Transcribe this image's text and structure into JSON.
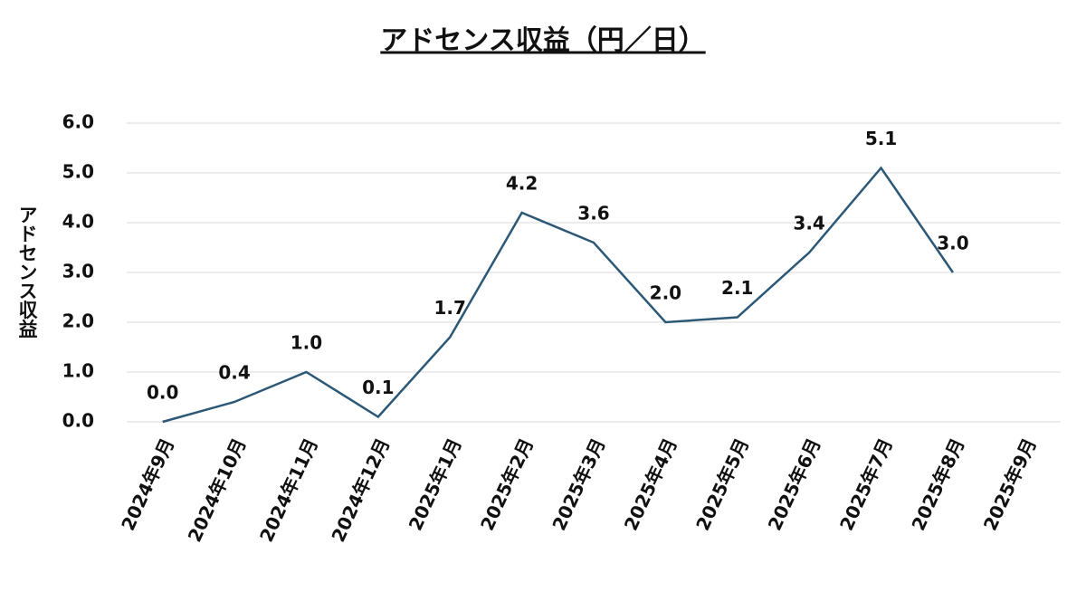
{
  "chart_data": {
    "type": "line",
    "title": "アドセンス収益（円／日）",
    "y_label": "アドセンス収益",
    "categories": [
      "2024年9月",
      "2024年10月",
      "2024年11月",
      "2024年12月",
      "2025年1月",
      "2025年2月",
      "2025年3月",
      "2025年4月",
      "2025年5月",
      "2025年6月",
      "2025年7月",
      "2025年8月",
      "2025年9月"
    ],
    "series": [
      {
        "name": "アドセンス収益",
        "color": "#2b5876",
        "values": [
          0.0,
          0.4,
          1.0,
          0.1,
          1.7,
          4.2,
          3.6,
          2.0,
          2.1,
          3.4,
          5.1,
          3.0,
          null
        ],
        "value_labels": [
          "0.0",
          "0.4",
          "1.0",
          "0.1",
          "1.7",
          "4.2",
          "3.6",
          "2.0",
          "2.1",
          "3.4",
          "5.1",
          "3.0",
          null
        ]
      }
    ],
    "ylim": [
      0,
      6
    ],
    "yticks": [
      {
        "value": 0,
        "label": "0.0"
      },
      {
        "value": 1,
        "label": "1.0"
      },
      {
        "value": 2,
        "label": "2.0"
      },
      {
        "value": 3,
        "label": "3.0"
      },
      {
        "value": 4,
        "label": "4.0"
      },
      {
        "value": 5,
        "label": "5.0"
      },
      {
        "value": 6,
        "label": "6.0"
      }
    ],
    "grid": true,
    "legend": false
  }
}
